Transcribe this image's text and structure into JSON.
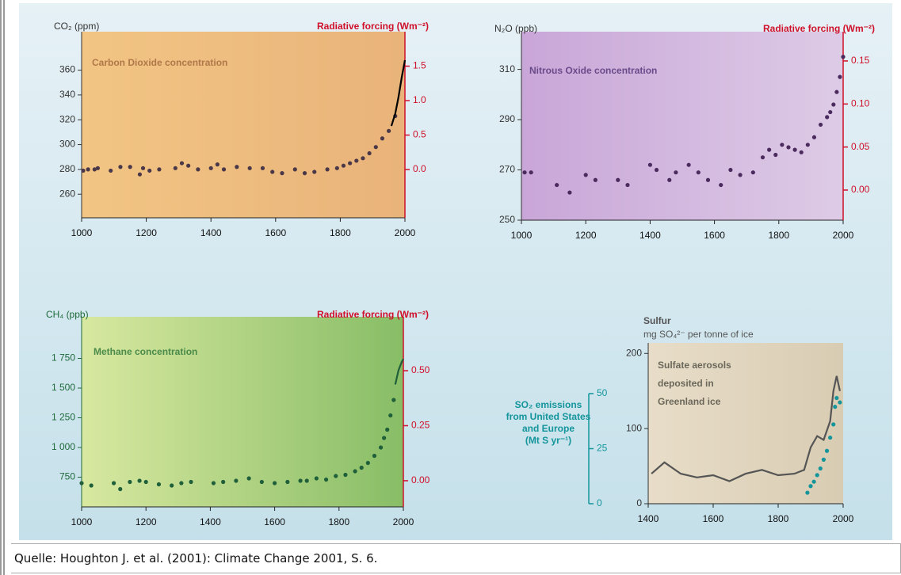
{
  "chart_data": [
    {
      "type": "scatter",
      "title": "Carbon Dioxide concentration",
      "title_color": "#b0784a",
      "ylabel": "CO₂ (ppm)",
      "y2label": "Radiative forcing (Wm⁻²)",
      "y2_color": "#d0102a",
      "xlim": [
        1000,
        2000
      ],
      "xticks": [
        1000,
        1200,
        1400,
        1600,
        1800,
        2000
      ],
      "ylim": [
        241,
        391
      ],
      "yticks": [
        260,
        280,
        300,
        320,
        340,
        360
      ],
      "y2lim": [
        -0.7,
        2.0
      ],
      "y2ticks": [
        {
          "value": 0,
          "label": "0.0"
        },
        {
          "value": 0.5,
          "label": "0.5"
        },
        {
          "value": 1,
          "label": "1.0"
        },
        {
          "value": 1.5,
          "label": "1.5"
        }
      ],
      "series": [
        {
          "mode": "markers",
          "color": "#4a3848",
          "x": [
            1005,
            1020,
            1040,
            1050,
            1090,
            1120,
            1150,
            1180,
            1190,
            1210,
            1240,
            1290,
            1310,
            1330,
            1360,
            1400,
            1420,
            1440,
            1480,
            1520,
            1560,
            1590,
            1620,
            1660,
            1690,
            1720,
            1760,
            1790,
            1810,
            1830,
            1850,
            1870,
            1890,
            1910,
            1930,
            1950,
            1970
          ],
          "values": [
            279,
            280,
            280,
            281,
            279,
            282,
            282,
            276,
            281,
            279,
            280,
            281,
            285,
            283,
            280,
            281,
            284,
            280,
            282,
            281,
            281,
            278,
            277,
            280,
            277,
            278,
            280,
            281,
            283,
            285,
            287,
            289,
            293,
            298,
            305,
            311,
            323
          ]
        },
        {
          "mode": "line",
          "color": "#000000",
          "x": [
            1958,
            1970,
            1980,
            1990,
            2000
          ],
          "values": [
            315,
            325,
            338,
            354,
            368
          ]
        }
      ]
    },
    {
      "type": "scatter",
      "title": "Nitrous Oxide concentration",
      "title_color": "#6a4a8a",
      "ylabel": "N₂O (ppb)",
      "y2label": "Radiative forcing (Wm⁻²)",
      "y2_color": "#d0102a",
      "xlim": [
        1000,
        2000
      ],
      "xticks": [
        1000,
        1200,
        1400,
        1600,
        1800,
        2000
      ],
      "ylim": [
        250,
        325
      ],
      "yticks": [
        250,
        270,
        290,
        310
      ],
      "y2lim": [
        -0.035,
        0.184
      ],
      "y2ticks": [
        {
          "value": 0,
          "label": "0.00"
        },
        {
          "value": 0.05,
          "label": "0.05"
        },
        {
          "value": 0.1,
          "label": "0.10"
        },
        {
          "value": 0.15,
          "label": "0.15"
        }
      ],
      "series": [
        {
          "mode": "markers",
          "color": "#4b2a5e",
          "x": [
            1010,
            1030,
            1110,
            1150,
            1200,
            1230,
            1300,
            1330,
            1400,
            1420,
            1460,
            1480,
            1520,
            1550,
            1580,
            1620,
            1650,
            1680,
            1720,
            1750,
            1770,
            1790,
            1810,
            1830,
            1850,
            1870,
            1890,
            1910,
            1930,
            1950,
            1960,
            1970,
            1980,
            1990,
            2000
          ],
          "values": [
            269,
            269,
            264,
            261,
            268,
            266,
            266,
            264,
            272,
            270,
            266,
            269,
            272,
            269,
            266,
            264,
            270,
            268,
            269,
            275,
            278,
            276,
            280,
            279,
            278,
            277,
            280,
            283,
            288,
            291,
            293,
            296,
            301,
            307,
            315
          ]
        }
      ]
    },
    {
      "type": "scatter",
      "title": "Methane concentration",
      "title_color": "#4a8a4a",
      "ylabel": "CH₄ (ppb)",
      "y2label": "Radiative forcing (Wm⁻²)",
      "y2_color": "#d0102a",
      "y_color": "#1f6a3a",
      "xlim": [
        1000,
        2000
      ],
      "xticks": [
        1000,
        1200,
        1400,
        1600,
        1800,
        2000
      ],
      "ylim": [
        500,
        2100
      ],
      "yticks": [
        {
          "value": 750,
          "label": "750"
        },
        {
          "value": 1000,
          "label": "1 000"
        },
        {
          "value": 1250,
          "label": "1 250"
        },
        {
          "value": 1500,
          "label": "1 500"
        },
        {
          "value": 1750,
          "label": "1 750"
        }
      ],
      "y2lim": [
        -0.119,
        0.745
      ],
      "y2ticks": [
        {
          "value": 0,
          "label": "0.00"
        },
        {
          "value": 0.25,
          "label": "0.25"
        },
        {
          "value": 0.5,
          "label": "0.50"
        }
      ],
      "series": [
        {
          "mode": "markers",
          "color": "#1f5f3a",
          "x": [
            1000,
            1030,
            1100,
            1120,
            1150,
            1180,
            1200,
            1240,
            1280,
            1310,
            1340,
            1410,
            1440,
            1480,
            1520,
            1560,
            1600,
            1640,
            1680,
            1700,
            1730,
            1760,
            1790,
            1820,
            1850,
            1870,
            1890,
            1910,
            1930,
            1940,
            1950,
            1960,
            1970
          ],
          "values": [
            700,
            680,
            700,
            650,
            710,
            720,
            710,
            690,
            680,
            700,
            710,
            700,
            710,
            720,
            740,
            710,
            700,
            710,
            720,
            720,
            740,
            730,
            760,
            770,
            800,
            830,
            870,
            930,
            1000,
            1080,
            1150,
            1270,
            1400
          ]
        },
        {
          "mode": "line",
          "color": "#1f5f3a",
          "x": [
            1975,
            1985,
            1995,
            2000
          ],
          "values": [
            1530,
            1650,
            1720,
            1745
          ]
        }
      ]
    },
    {
      "type": "scatter",
      "title": [
        "Sulfate aerosols",
        "deposited in",
        "Greenland ice"
      ],
      "title_color": "#6a675a",
      "ylabel": "Sulfur",
      "ylabel_unit": "mg SO₄²⁻ per tonne of ice",
      "y2label": [
        "SO₂ emissions",
        "from United States",
        "and Europe",
        "(Mt S yr⁻¹)"
      ],
      "y2_color": "#13959b",
      "xlim": [
        1400,
        2000
      ],
      "xticks": [
        1400,
        1600,
        1800,
        2000
      ],
      "ylim": [
        0,
        214
      ],
      "yticks": [
        0,
        100,
        200
      ],
      "y2lim": [
        0,
        73
      ],
      "y2ticks": [
        0,
        25,
        50
      ],
      "series": [
        {
          "mode": "line",
          "color": "#555555",
          "x": [
            1410,
            1450,
            1500,
            1550,
            1600,
            1650,
            1700,
            1750,
            1800,
            1850,
            1880,
            1900,
            1920,
            1940,
            1960,
            1970,
            1980,
            1990
          ],
          "values": [
            40,
            55,
            40,
            35,
            38,
            30,
            40,
            45,
            38,
            40,
            45,
            75,
            90,
            85,
            110,
            150,
            170,
            150
          ]
        },
        {
          "mode": "markers",
          "axis": "y2",
          "color": "#13959b",
          "x": [
            1890,
            1900,
            1910,
            1920,
            1930,
            1940,
            1950,
            1960,
            1970,
            1975,
            1980,
            1990
          ],
          "values": [
            5,
            8,
            10,
            13,
            16,
            20,
            24,
            30,
            36,
            44,
            48,
            46
          ]
        }
      ]
    }
  ],
  "caption": "Quelle: Houghton J. et al. (2001): Climate Change 2001, S. 6."
}
